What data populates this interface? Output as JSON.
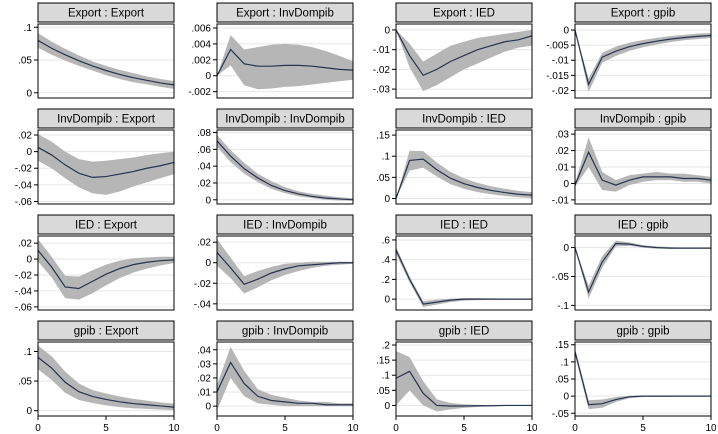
{
  "figure": {
    "type": "irf-panel-grid",
    "rows": 4,
    "cols": 4
  },
  "colors": {
    "line": "#26334f",
    "band": "#b6b6b6",
    "grid": "#e6e6e6",
    "title_bg": "#d9d9d9",
    "border": "#000000",
    "background": "#ffffff"
  },
  "axis": {
    "xlim": [
      0,
      10
    ],
    "xticks": [
      0,
      5,
      10
    ],
    "xtick_labels": [
      "0",
      "5",
      "10"
    ]
  },
  "chart_data": [
    {
      "type": "area",
      "title": "Export : Export",
      "impulse": "Export",
      "response": "Export",
      "ylim": [
        -0.008,
        0.105
      ],
      "ytick_vals": [
        0.1,
        0.05,
        0
      ],
      "ytick_labels": [
        ".1",
        ".05",
        "0"
      ],
      "x": [
        0,
        1,
        2,
        3,
        4,
        5,
        6,
        7,
        8,
        9,
        10
      ],
      "line": [
        0.08,
        0.068,
        0.058,
        0.049,
        0.041,
        0.034,
        0.028,
        0.023,
        0.019,
        0.015,
        0.012
      ],
      "upper": [
        0.091,
        0.078,
        0.067,
        0.057,
        0.048,
        0.041,
        0.035,
        0.03,
        0.025,
        0.021,
        0.018
      ],
      "lower": [
        0.069,
        0.058,
        0.049,
        0.041,
        0.034,
        0.027,
        0.021,
        0.016,
        0.013,
        0.009,
        0.006
      ],
      "show_xlabels": false
    },
    {
      "type": "area",
      "title": "Export : InvDompib",
      "impulse": "Export",
      "response": "InvDompib",
      "ylim": [
        -0.0028,
        0.0065
      ],
      "ytick_vals": [
        0.006,
        0.004,
        0.002,
        0,
        -0.002
      ],
      "ytick_labels": [
        ".006",
        ".004",
        ".002",
        "0",
        "-.002"
      ],
      "x": [
        0,
        1,
        2,
        3,
        4,
        5,
        6,
        7,
        8,
        9,
        10
      ],
      "line": [
        0,
        0.0033,
        0.0015,
        0.0012,
        0.0012,
        0.0013,
        0.0013,
        0.0012,
        0.001,
        0.0008,
        0.0007
      ],
      "upper": [
        0,
        0.0051,
        0.0033,
        0.0036,
        0.0039,
        0.004,
        0.0039,
        0.0036,
        0.0031,
        0.0025,
        0.0018
      ],
      "lower": [
        0,
        0.0013,
        -0.0012,
        -0.0017,
        -0.0016,
        -0.0014,
        -0.0013,
        -0.0011,
        -0.0009,
        -0.0007,
        -0.0005
      ],
      "show_xlabels": false
    },
    {
      "type": "area",
      "title": "Export : IED",
      "impulse": "Export",
      "response": "IED",
      "ylim": [
        -0.0345,
        0.003
      ],
      "ytick_vals": [
        0,
        -0.01,
        -0.02,
        -0.03
      ],
      "ytick_labels": [
        "0",
        "-.01",
        "-.02",
        "-.03"
      ],
      "x": [
        0,
        1,
        2,
        3,
        4,
        5,
        6,
        7,
        8,
        9,
        10
      ],
      "line": [
        0,
        -0.013,
        -0.023,
        -0.02,
        -0.016,
        -0.013,
        -0.01,
        -0.008,
        -0.006,
        -0.005,
        -0.003
      ],
      "upper": [
        0,
        -0.007,
        -0.016,
        -0.012,
        -0.008,
        -0.006,
        -0.004,
        -0.003,
        -0.002,
        -0.001,
        0.0
      ],
      "lower": [
        0,
        -0.019,
        -0.031,
        -0.028,
        -0.024,
        -0.02,
        -0.017,
        -0.014,
        -0.011,
        -0.009,
        -0.008
      ],
      "show_xlabels": false
    },
    {
      "type": "area",
      "title": "Export : gpib",
      "impulse": "Export",
      "response": "gpib",
      "ylim": [
        -0.0225,
        0.002
      ],
      "ytick_vals": [
        0,
        -0.005,
        -0.01,
        -0.015,
        -0.02
      ],
      "ytick_labels": [
        "0",
        "-.005",
        "-.01",
        "-.015",
        "-.02"
      ],
      "x": [
        0,
        1,
        2,
        3,
        4,
        5,
        6,
        7,
        8,
        9,
        10
      ],
      "line": [
        0,
        -0.018,
        -0.009,
        -0.007,
        -0.0055,
        -0.0045,
        -0.0037,
        -0.003,
        -0.0025,
        -0.0021,
        -0.0018
      ],
      "upper": [
        0,
        -0.016,
        -0.0075,
        -0.0055,
        -0.0042,
        -0.0033,
        -0.0026,
        -0.002,
        -0.0016,
        -0.0012,
        -0.001
      ],
      "lower": [
        0,
        -0.0205,
        -0.0108,
        -0.0086,
        -0.0069,
        -0.0057,
        -0.0048,
        -0.004,
        -0.0034,
        -0.003,
        -0.0026
      ],
      "show_xlabels": false
    },
    {
      "type": "area",
      "title": "InvDompib : Export",
      "impulse": "InvDompib",
      "response": "Export",
      "ylim": [
        -0.063,
        0.026
      ],
      "ytick_vals": [
        0.02,
        0,
        -0.02,
        -0.04,
        -0.06
      ],
      "ytick_labels": [
        ".02",
        "0",
        "-.02",
        "-.04",
        "-.06"
      ],
      "x": [
        0,
        1,
        2,
        3,
        4,
        5,
        6,
        7,
        8,
        9,
        10
      ],
      "line": [
        0.005,
        -0.004,
        -0.016,
        -0.026,
        -0.031,
        -0.03,
        -0.027,
        -0.024,
        -0.02,
        -0.017,
        -0.013
      ],
      "upper": [
        0.021,
        0.012,
        0.0,
        -0.009,
        -0.012,
        -0.011,
        -0.009,
        -0.007,
        -0.004,
        -0.002,
        0.0
      ],
      "lower": [
        -0.011,
        -0.02,
        -0.032,
        -0.043,
        -0.05,
        -0.052,
        -0.048,
        -0.042,
        -0.037,
        -0.032,
        -0.027
      ],
      "show_xlabels": false
    },
    {
      "type": "area",
      "title": "InvDompib : InvDompib",
      "impulse": "InvDompib",
      "response": "InvDompib",
      "ylim": [
        -0.005,
        0.083
      ],
      "ytick_vals": [
        0.08,
        0.06,
        0.04,
        0.02,
        0
      ],
      "ytick_labels": [
        ".08",
        ".06",
        ".04",
        ".02",
        "0"
      ],
      "x": [
        0,
        1,
        2,
        3,
        4,
        5,
        6,
        7,
        8,
        9,
        10
      ],
      "line": [
        0.07,
        0.052,
        0.037,
        0.026,
        0.017,
        0.011,
        0.007,
        0.004,
        0.002,
        0.001,
        0.0
      ],
      "upper": [
        0.077,
        0.059,
        0.044,
        0.031,
        0.022,
        0.015,
        0.01,
        0.007,
        0.005,
        0.003,
        0.002
      ],
      "lower": [
        0.063,
        0.045,
        0.031,
        0.021,
        0.013,
        0.008,
        0.004,
        0.002,
        0.0,
        -0.001,
        -0.001
      ],
      "show_xlabels": false
    },
    {
      "type": "area",
      "title": "InvDompib : IED",
      "impulse": "InvDompib",
      "response": "IED",
      "ylim": [
        -0.013,
        0.162
      ],
      "ytick_vals": [
        0.15,
        0.1,
        0.05,
        0
      ],
      "ytick_labels": [
        ".15",
        ".1",
        ".05",
        "0"
      ],
      "x": [
        0,
        1,
        2,
        3,
        4,
        5,
        6,
        7,
        8,
        9,
        10
      ],
      "line": [
        0,
        0.09,
        0.093,
        0.068,
        0.048,
        0.035,
        0.026,
        0.019,
        0.014,
        0.01,
        0.008
      ],
      "upper": [
        0,
        0.113,
        0.112,
        0.085,
        0.063,
        0.048,
        0.037,
        0.029,
        0.023,
        0.018,
        0.015
      ],
      "lower": [
        0,
        0.066,
        0.073,
        0.052,
        0.034,
        0.023,
        0.015,
        0.01,
        0.006,
        0.003,
        0.001
      ],
      "show_xlabels": false
    },
    {
      "type": "area",
      "title": "InvDompib : gpib",
      "impulse": "InvDompib",
      "response": "gpib",
      "ylim": [
        -0.0125,
        0.0325
      ],
      "ytick_vals": [
        0.03,
        0.02,
        0.01,
        0,
        -0.01
      ],
      "ytick_labels": [
        ".03",
        ".02",
        ".01",
        "0",
        "-.01"
      ],
      "x": [
        0,
        1,
        2,
        3,
        4,
        5,
        6,
        7,
        8,
        9,
        10
      ],
      "line": [
        -0.001,
        0.019,
        0.002,
        -0.001,
        0.002,
        0.004,
        0.004,
        0.004,
        0.003,
        0.003,
        0.002
      ],
      "upper": [
        0.0,
        0.028,
        0.007,
        0.002,
        0.005,
        0.006,
        0.007,
        0.006,
        0.006,
        0.005,
        0.004
      ],
      "lower": [
        -0.002,
        0.01,
        -0.004,
        -0.005,
        -0.001,
        0.001,
        0.002,
        0.002,
        0.001,
        0.001,
        0.0
      ],
      "show_xlabels": false
    },
    {
      "type": "area",
      "title": "IED : Export",
      "impulse": "IED",
      "response": "Export",
      "ylim": [
        -0.064,
        0.029
      ],
      "ytick_vals": [
        0.02,
        0,
        -0.02,
        -0.04,
        -0.06
      ],
      "ytick_labels": [
        ".02",
        "0",
        "-.02",
        "-.04",
        "-.06"
      ],
      "x": [
        0,
        1,
        2,
        3,
        4,
        5,
        6,
        7,
        8,
        9,
        10
      ],
      "line": [
        0.011,
        -0.01,
        -0.035,
        -0.037,
        -0.028,
        -0.019,
        -0.012,
        -0.007,
        -0.004,
        -0.002,
        -0.001
      ],
      "upper": [
        0.025,
        0.003,
        -0.021,
        -0.022,
        -0.014,
        -0.007,
        -0.002,
        0.001,
        0.002,
        0.003,
        0.003
      ],
      "lower": [
        -0.003,
        -0.023,
        -0.049,
        -0.051,
        -0.043,
        -0.033,
        -0.024,
        -0.017,
        -0.012,
        -0.008,
        -0.005
      ],
      "show_xlabels": false
    },
    {
      "type": "area",
      "title": "IED : InvDompib",
      "impulse": "IED",
      "response": "InvDompib",
      "ylim": [
        -0.046,
        0.026
      ],
      "ytick_vals": [
        0.02,
        0,
        -0.02,
        -0.04
      ],
      "ytick_labels": [
        ".02",
        "0",
        "-.02",
        "-.04"
      ],
      "x": [
        0,
        1,
        2,
        3,
        4,
        5,
        6,
        7,
        8,
        9,
        10
      ],
      "line": [
        0.01,
        -0.005,
        -0.021,
        -0.016,
        -0.01,
        -0.006,
        -0.003,
        -0.002,
        -0.001,
        0.0,
        0.0
      ],
      "upper": [
        0.023,
        0.005,
        -0.013,
        -0.008,
        -0.004,
        -0.001,
        0.0,
        0.001,
        0.001,
        0.001,
        0.001
      ],
      "lower": [
        -0.003,
        -0.015,
        -0.03,
        -0.024,
        -0.017,
        -0.012,
        -0.008,
        -0.005,
        -0.003,
        -0.002,
        -0.001
      ],
      "show_xlabels": false
    },
    {
      "type": "area",
      "title": "IED : IED",
      "impulse": "IED",
      "response": "IED",
      "ylim": [
        -0.11,
        0.64
      ],
      "ytick_vals": [
        0.6,
        0.4,
        0.2,
        0
      ],
      "ytick_labels": [
        ".6",
        ".4",
        ".2",
        "0"
      ],
      "x": [
        0,
        1,
        2,
        3,
        4,
        5,
        6,
        7,
        8,
        9,
        10
      ],
      "line": [
        0.5,
        0.2,
        -0.05,
        -0.03,
        -0.01,
        0.0,
        0.0,
        0.0,
        0.0,
        0.0,
        0.0
      ],
      "upper": [
        0.53,
        0.23,
        -0.02,
        -0.005,
        0.005,
        0.01,
        0.01,
        0.008,
        0.006,
        0.005,
        0.005
      ],
      "lower": [
        0.46,
        0.17,
        -0.08,
        -0.055,
        -0.03,
        -0.015,
        -0.01,
        -0.008,
        -0.006,
        -0.005,
        -0.005
      ],
      "show_xlabels": false
    },
    {
      "type": "area",
      "title": "IED : gpib",
      "impulse": "IED",
      "response": "gpib",
      "ylim": [
        -0.108,
        0.02
      ],
      "ytick_vals": [
        0,
        -0.05,
        -0.1
      ],
      "ytick_labels": [
        "0",
        "-.05",
        "-.1"
      ],
      "x": [
        0,
        1,
        2,
        3,
        4,
        5,
        6,
        7,
        8,
        9,
        10
      ],
      "line": [
        0,
        -0.077,
        -0.025,
        0.007,
        0.006,
        0.002,
        0.0,
        -0.001,
        -0.001,
        -0.001,
        -0.001
      ],
      "upper": [
        0,
        -0.066,
        -0.015,
        0.012,
        0.009,
        0.004,
        0.002,
        0.001,
        0.0,
        0.0,
        0.0
      ],
      "lower": [
        0,
        -0.088,
        -0.035,
        0.002,
        0.003,
        0.0,
        -0.002,
        -0.002,
        -0.002,
        -0.002,
        -0.002
      ],
      "show_xlabels": false
    },
    {
      "type": "area",
      "title": "gpib : Export",
      "impulse": "gpib",
      "response": "Export",
      "ylim": [
        -0.009,
        0.116
      ],
      "ytick_vals": [
        0.1,
        0.05,
        0
      ],
      "ytick_labels": [
        ".1",
        ".05",
        "0"
      ],
      "x": [
        0,
        1,
        2,
        3,
        4,
        5,
        6,
        7,
        8,
        9,
        10
      ],
      "line": [
        0.09,
        0.072,
        0.048,
        0.032,
        0.024,
        0.019,
        0.015,
        0.012,
        0.01,
        0.008,
        0.006
      ],
      "upper": [
        0.11,
        0.092,
        0.066,
        0.046,
        0.035,
        0.029,
        0.024,
        0.02,
        0.017,
        0.014,
        0.012
      ],
      "lower": [
        0.07,
        0.052,
        0.03,
        0.018,
        0.013,
        0.009,
        0.006,
        0.004,
        0.003,
        0.002,
        0.001
      ],
      "show_xlabels": true
    },
    {
      "type": "area",
      "title": "gpib : InvDompib",
      "impulse": "gpib",
      "response": "InvDompib",
      "ylim": [
        -0.007,
        0.0455
      ],
      "ytick_vals": [
        0.04,
        0.03,
        0.02,
        0.01,
        0
      ],
      "ytick_labels": [
        ".04",
        ".03",
        ".02",
        ".01",
        "0"
      ],
      "x": [
        0,
        1,
        2,
        3,
        4,
        5,
        6,
        7,
        8,
        9,
        10
      ],
      "line": [
        0.01,
        0.031,
        0.016,
        0.007,
        0.004,
        0.003,
        0.002,
        0.002,
        0.001,
        0.001,
        0.001
      ],
      "upper": [
        0.015,
        0.042,
        0.025,
        0.012,
        0.008,
        0.006,
        0.004,
        0.003,
        0.003,
        0.002,
        0.002
      ],
      "lower": [
        -0.003,
        0.02,
        0.007,
        0.002,
        0.001,
        0.0,
        0.0,
        0.0,
        0.0,
        0.0,
        0.0
      ],
      "show_xlabels": true
    },
    {
      "type": "area",
      "title": "gpib : IED",
      "impulse": "gpib",
      "response": "IED",
      "ylim": [
        -0.035,
        0.21
      ],
      "ytick_vals": [
        0.2,
        0.15,
        0.1,
        0.05,
        0
      ],
      "ytick_labels": [
        ".2",
        ".15",
        ".1",
        ".05",
        "0"
      ],
      "x": [
        0,
        1,
        2,
        3,
        4,
        5,
        6,
        7,
        8,
        9,
        10
      ],
      "line": [
        0.09,
        0.113,
        0.04,
        0.0,
        -0.002,
        -0.002,
        -0.001,
        -0.001,
        0.0,
        0.0,
        0.0
      ],
      "upper": [
        0.18,
        0.16,
        0.08,
        0.02,
        0.008,
        0.004,
        0.002,
        0.001,
        0.001,
        0.001,
        0.001
      ],
      "lower": [
        0.0,
        0.05,
        0.0,
        -0.02,
        -0.013,
        -0.008,
        -0.005,
        -0.003,
        -0.002,
        -0.002,
        -0.001
      ],
      "show_xlabels": true
    },
    {
      "type": "area",
      "title": "gpib : gpib",
      "impulse": "gpib",
      "response": "gpib",
      "ylim": [
        -0.058,
        0.158
      ],
      "ytick_vals": [
        0.15,
        0.1,
        0.05,
        0,
        -0.05
      ],
      "ytick_labels": [
        ".15",
        ".1",
        ".05",
        "0",
        "-.05"
      ],
      "x": [
        0,
        1,
        2,
        3,
        4,
        5,
        6,
        7,
        8,
        9,
        10
      ],
      "line": [
        0.13,
        -0.025,
        -0.022,
        -0.01,
        -0.002,
        0.0,
        0.0,
        0.0,
        0.0,
        0.0,
        0.0
      ],
      "upper": [
        0.14,
        -0.012,
        -0.01,
        -0.003,
        0.001,
        0.002,
        0.002,
        0.001,
        0.001,
        0.001,
        0.001
      ],
      "lower": [
        0.12,
        -0.038,
        -0.034,
        -0.017,
        -0.006,
        -0.002,
        -0.002,
        -0.002,
        -0.001,
        -0.001,
        -0.001
      ],
      "show_xlabels": true
    }
  ]
}
